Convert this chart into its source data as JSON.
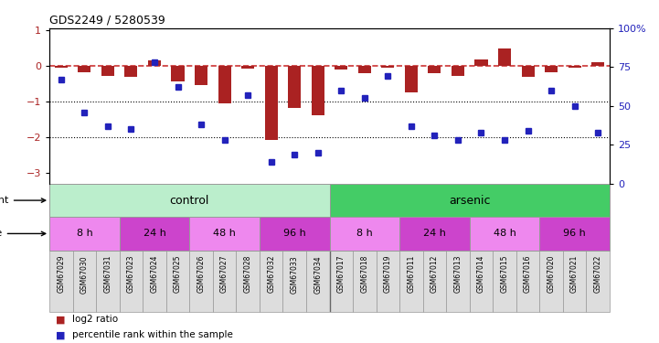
{
  "title": "GDS2249 / 5280539",
  "samples": [
    "GSM67029",
    "GSM67030",
    "GSM67031",
    "GSM67023",
    "GSM67024",
    "GSM67025",
    "GSM67026",
    "GSM67027",
    "GSM67028",
    "GSM67032",
    "GSM67033",
    "GSM67034",
    "GSM67017",
    "GSM67018",
    "GSM67019",
    "GSM67011",
    "GSM67012",
    "GSM67013",
    "GSM67014",
    "GSM67015",
    "GSM67016",
    "GSM67020",
    "GSM67021",
    "GSM67022"
  ],
  "log2ratio": [
    -0.05,
    -0.18,
    -0.28,
    -0.32,
    0.15,
    -0.45,
    -0.55,
    -1.05,
    -0.08,
    -2.08,
    -1.18,
    -1.38,
    -0.12,
    -0.22,
    -0.07,
    -0.75,
    -0.2,
    -0.28,
    0.18,
    0.48,
    -0.32,
    -0.18,
    -0.05,
    0.1
  ],
  "percentile": [
    67,
    46,
    37,
    35,
    78,
    62,
    38,
    28,
    57,
    14,
    19,
    20,
    60,
    55,
    69,
    37,
    31,
    28,
    33,
    28,
    34,
    60,
    50,
    33
  ],
  "bar_color": "#aa2222",
  "dot_color": "#2222bb",
  "dashed_line_color": "#cc3333",
  "agent_control_color": "#bbeecc",
  "agent_arsenic_color": "#44cc66",
  "time_color1": "#ee88ee",
  "time_color2": "#cc44cc",
  "sample_box_color": "#dddddd",
  "ylim_left": [
    -3.3,
    1.05
  ],
  "ylim_right": [
    0,
    100
  ],
  "yticks_left": [
    -3,
    -2,
    -1,
    0,
    1
  ],
  "yticks_right": [
    0,
    25,
    50,
    75,
    100
  ],
  "ytick_right_labels": [
    "0",
    "25",
    "50",
    "75",
    "100%"
  ],
  "time_groups": [
    {
      "label": "8 h",
      "start": 0,
      "end": 3,
      "time_idx": 0
    },
    {
      "label": "24 h",
      "start": 3,
      "end": 6,
      "time_idx": 1
    },
    {
      "label": "48 h",
      "start": 6,
      "end": 9,
      "time_idx": 0
    },
    {
      "label": "96 h",
      "start": 9,
      "end": 12,
      "time_idx": 1
    },
    {
      "label": "8 h",
      "start": 12,
      "end": 15,
      "time_idx": 0
    },
    {
      "label": "24 h",
      "start": 15,
      "end": 18,
      "time_idx": 1
    },
    {
      "label": "48 h",
      "start": 18,
      "end": 21,
      "time_idx": 0
    },
    {
      "label": "96 h",
      "start": 21,
      "end": 24,
      "time_idx": 1
    }
  ]
}
